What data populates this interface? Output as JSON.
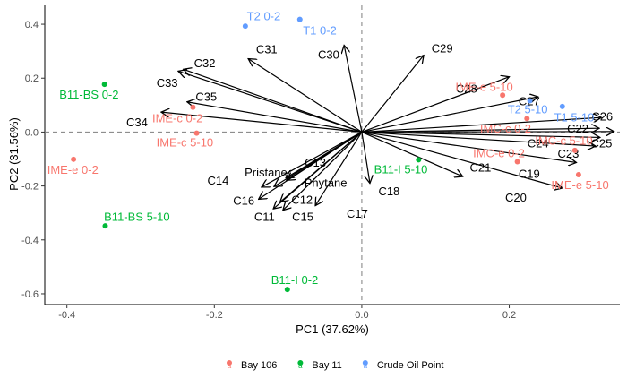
{
  "chart_data": {
    "type": "scatter",
    "subtype": "pca-biplot",
    "title": "",
    "xlabel": "PC1 (37.62%)",
    "ylabel": "PC2 (31.56%)",
    "xlim": [
      -0.43,
      0.35
    ],
    "ylim": [
      -0.64,
      0.47
    ],
    "x_ticks": [
      -0.4,
      -0.2,
      0.0,
      0.2
    ],
    "x_tick_labels": [
      "-0.4",
      "-0.2",
      "0.0",
      "0.2"
    ],
    "y_ticks": [
      -0.6,
      -0.4,
      -0.2,
      0.0,
      0.2,
      0.4
    ],
    "y_tick_labels": [
      "-0.6",
      "-0.4",
      "-0.2",
      "0.0",
      "0.2",
      "0.4"
    ],
    "grid": false,
    "reference_lines": "dashed at x=0 and y=0",
    "legend_position": "bottom",
    "groups": [
      {
        "name": "Bay 106",
        "color": "#F8766D"
      },
      {
        "name": "Bay 11",
        "color": "#00BA38"
      },
      {
        "name": "Crude Oil Point",
        "color": "#619CFF"
      }
    ],
    "points": [
      {
        "label": "T2 0-2",
        "group": "Crude Oil Point",
        "x": -0.158,
        "y": 0.393,
        "lx": -0.133,
        "ly": 0.428
      },
      {
        "label": "T1 0-2",
        "group": "Crude Oil Point",
        "x": -0.084,
        "y": 0.418,
        "lx": -0.057,
        "ly": 0.376
      },
      {
        "label": "T2 5-10",
        "group": "Crude Oil Point",
        "x": 0.228,
        "y": 0.116,
        "lx": 0.225,
        "ly": 0.083
      },
      {
        "label": "T1 5-10",
        "group": "Crude Oil Point",
        "x": 0.272,
        "y": 0.095,
        "lx": 0.288,
        "ly": 0.053
      },
      {
        "label": "B11-BS 0-2",
        "group": "Bay 11",
        "x": -0.349,
        "y": 0.177,
        "lx": -0.37,
        "ly": 0.138
      },
      {
        "label": "B11-BS 5-10",
        "group": "Bay 11",
        "x": -0.348,
        "y": -0.348,
        "lx": -0.305,
        "ly": -0.316
      },
      {
        "label": "B11-I 5-10",
        "group": "Bay 11",
        "x": 0.077,
        "y": -0.103,
        "lx": 0.053,
        "ly": -0.14
      },
      {
        "label": "B11-I 0-2",
        "group": "Bay 11",
        "x": -0.101,
        "y": -0.584,
        "lx": -0.091,
        "ly": -0.55
      },
      {
        "label": "IME-e 5-10",
        "group": "Bay 106",
        "x": 0.191,
        "y": 0.137,
        "lx": 0.166,
        "ly": 0.166
      },
      {
        "label": "IMC-e 0-2",
        "group": "Bay 106",
        "x": 0.211,
        "y": -0.11,
        "lx": 0.186,
        "ly": -0.08
      },
      {
        "label": "IMC-c 5-10",
        "group": "Bay 106",
        "x": 0.289,
        "y": -0.068,
        "lx": 0.274,
        "ly": -0.034
      },
      {
        "label": "IMC-c 0-2",
        "group": "Bay 106",
        "x": 0.224,
        "y": 0.05,
        "lx": 0.195,
        "ly": 0.012
      },
      {
        "label": "IME-e 5-10",
        "group": "Bay 106",
        "x": 0.294,
        "y": -0.158,
        "lx": 0.296,
        "ly": -0.198
      },
      {
        "label": "IME-e 0-2",
        "group": "Bay 106",
        "x": -0.391,
        "y": -0.101,
        "lx": -0.392,
        "ly": -0.141
      },
      {
        "label": "IME-c 0-2",
        "group": "Bay 106",
        "x": -0.229,
        "y": 0.092,
        "lx": -0.25,
        "ly": 0.05
      },
      {
        "label": "IME-c 5-10",
        "group": "Bay 106",
        "x": -0.224,
        "y": -0.004,
        "lx": -0.24,
        "ly": -0.04
      }
    ],
    "loadings": [
      {
        "label": "C29",
        "x": 0.084,
        "y": 0.285,
        "lx": 0.109,
        "ly": 0.309
      },
      {
        "label": "C28",
        "x": 0.2,
        "y": 0.205,
        "lx": 0.142,
        "ly": 0.159
      },
      {
        "label": "C27",
        "x": 0.239,
        "y": 0.131,
        "lx": 0.227,
        "ly": 0.112
      },
      {
        "label": "C26",
        "x": 0.325,
        "y": 0.054,
        "lx": 0.326,
        "ly": 0.056
      },
      {
        "label": "C22",
        "x": 0.322,
        "y": 0.014,
        "lx": 0.293,
        "ly": 0.012
      },
      {
        "label": "C25",
        "x": 0.342,
        "y": 0.002,
        "lx": 0.325,
        "ly": -0.043
      },
      {
        "label": "C24",
        "x": 0.323,
        "y": -0.02,
        "lx": 0.239,
        "ly": -0.044
      },
      {
        "label": "C23",
        "x": 0.317,
        "y": -0.052,
        "lx": 0.28,
        "ly": -0.082
      },
      {
        "label": "C21",
        "x": 0.137,
        "y": -0.165,
        "lx": 0.161,
        "ly": -0.133
      },
      {
        "label": "C19",
        "x": 0.291,
        "y": -0.113,
        "lx": 0.227,
        "ly": -0.156
      },
      {
        "label": "C20",
        "x": 0.272,
        "y": -0.208,
        "lx": 0.209,
        "ly": -0.244
      },
      {
        "label": "C18",
        "x": 0.011,
        "y": -0.19,
        "lx": 0.037,
        "ly": -0.222
      },
      {
        "label": "C17",
        "x": -0.063,
        "y": -0.273,
        "lx": -0.006,
        "ly": -0.304
      },
      {
        "label": "C15",
        "x": -0.107,
        "y": -0.29,
        "lx": -0.08,
        "ly": -0.316
      },
      {
        "label": "C11",
        "x": -0.12,
        "y": -0.285,
        "lx": -0.132,
        "ly": -0.316
      },
      {
        "label": "C12",
        "x": -0.111,
        "y": -0.26,
        "lx": -0.081,
        "ly": -0.253
      },
      {
        "label": "C13",
        "x": -0.103,
        "y": -0.17,
        "lx": -0.063,
        "ly": -0.115
      },
      {
        "label": "C16",
        "x": -0.14,
        "y": -0.249,
        "lx": -0.16,
        "ly": -0.256
      },
      {
        "label": "C14",
        "x": -0.136,
        "y": -0.204,
        "lx": -0.195,
        "ly": -0.182
      },
      {
        "label": "Pristane",
        "x": -0.119,
        "y": -0.202,
        "lx": -0.13,
        "ly": -0.152
      },
      {
        "label": "Phytane",
        "x": -0.102,
        "y": -0.179,
        "lx": -0.049,
        "ly": -0.19
      },
      {
        "label": "C34",
        "x": -0.272,
        "y": 0.074,
        "lx": -0.305,
        "ly": 0.035
      },
      {
        "label": "C35",
        "x": -0.237,
        "y": 0.112,
        "lx": -0.211,
        "ly": 0.13
      },
      {
        "label": "C33",
        "x": -0.249,
        "y": 0.226,
        "lx": -0.264,
        "ly": 0.181
      },
      {
        "label": "C32",
        "x": -0.242,
        "y": 0.233,
        "lx": -0.213,
        "ly": 0.254
      },
      {
        "label": "C31",
        "x": -0.154,
        "y": 0.272,
        "lx": -0.129,
        "ly": 0.305
      },
      {
        "label": "C30",
        "x": -0.024,
        "y": 0.322,
        "lx": -0.045,
        "ly": 0.285
      }
    ]
  }
}
